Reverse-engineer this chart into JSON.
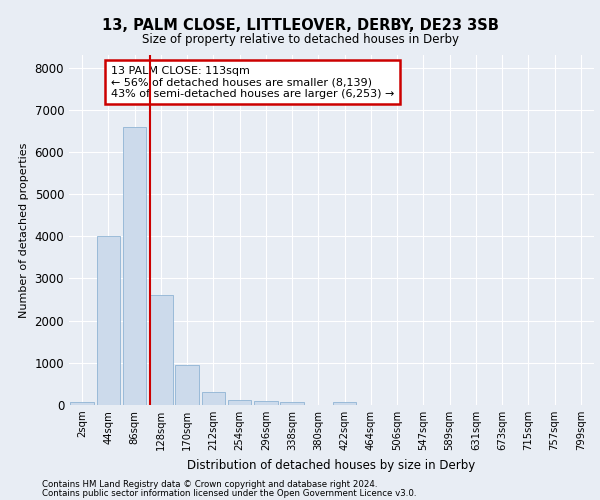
{
  "title1": "13, PALM CLOSE, LITTLEOVER, DERBY, DE23 3SB",
  "title2": "Size of property relative to detached houses in Derby",
  "xlabel": "Distribution of detached houses by size in Derby",
  "ylabel": "Number of detached properties",
  "footnote1": "Contains HM Land Registry data © Crown copyright and database right 2024.",
  "footnote2": "Contains public sector information licensed under the Open Government Licence v3.0.",
  "annotation_title": "13 PALM CLOSE: 113sqm",
  "annotation_line1": "← 56% of detached houses are smaller (8,139)",
  "annotation_line2": "43% of semi-detached houses are larger (6,253) →",
  "bar_values": [
    75,
    4000,
    6600,
    2620,
    950,
    320,
    130,
    90,
    65,
    0,
    75,
    0,
    0,
    0,
    0,
    0,
    0,
    0,
    0,
    0
  ],
  "bar_color": "#ccdaeb",
  "bar_edge_color": "#8fb4d4",
  "x_labels": [
    "2sqm",
    "44sqm",
    "86sqm",
    "128sqm",
    "170sqm",
    "212sqm",
    "254sqm",
    "296sqm",
    "338sqm",
    "380sqm",
    "422sqm",
    "464sqm",
    "506sqm",
    "547sqm",
    "589sqm",
    "631sqm",
    "673sqm",
    "715sqm",
    "757sqm",
    "799sqm"
  ],
  "ylim": [
    0,
    8300
  ],
  "yticks": [
    0,
    1000,
    2000,
    3000,
    4000,
    5000,
    6000,
    7000,
    8000
  ],
  "vline_x": 2.58,
  "vline_color": "#cc0000",
  "bg_color": "#e8edf4",
  "plot_bg_color": "#e8edf4",
  "grid_color": "#ffffff"
}
